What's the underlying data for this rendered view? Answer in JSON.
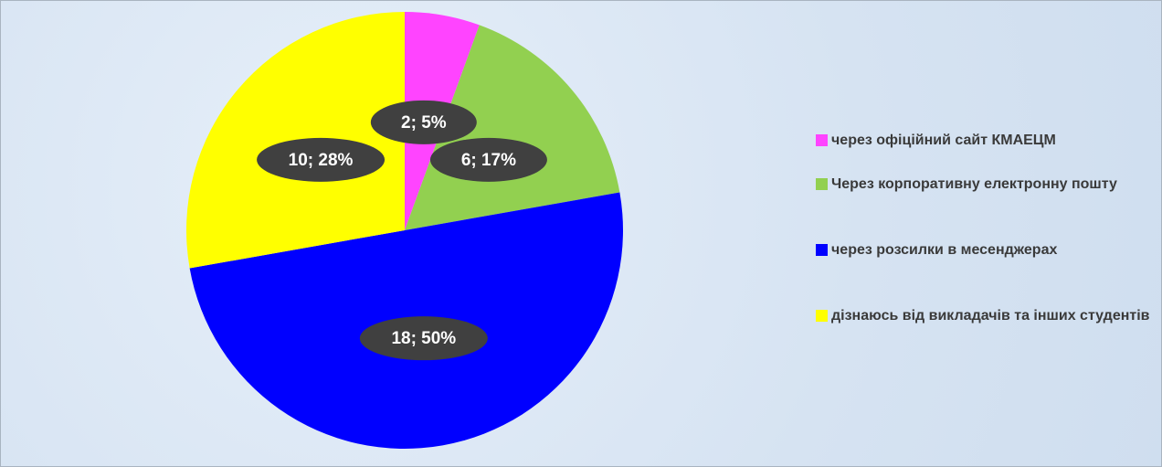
{
  "chart_data": {
    "type": "pie",
    "categories": [
      "через офіційний сайт КМАЕЦМ",
      "Через корпоративну електронну пошту",
      "через розсилки в месенджерах",
      "дізнаюсь від викладачів та інших студентів"
    ],
    "values": [
      2,
      6,
      18,
      10
    ],
    "value_labels": [
      "2; 5%",
      "6; 17%",
      "18; 50%",
      "10; 28%"
    ],
    "colors": [
      "#ff44ff",
      "#92d050",
      "#0000ff",
      "#ffff00"
    ],
    "legend": "right"
  }
}
